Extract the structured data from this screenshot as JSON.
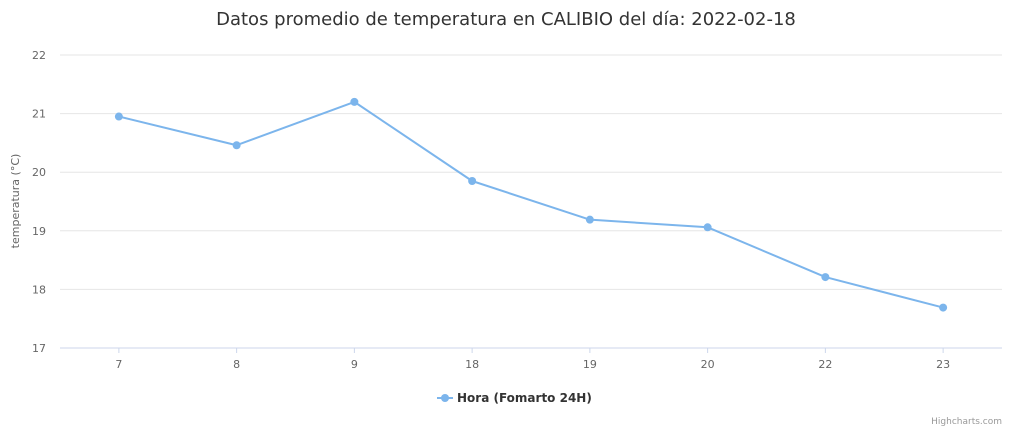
{
  "chart_data": {
    "type": "line",
    "title": "Datos promedio de temperatura en CALIBIO del día: 2022-02-18",
    "xlabel": "",
    "ylabel": "temperatura (°C)",
    "categories": [
      "7",
      "8",
      "9",
      "18",
      "19",
      "20",
      "22",
      "23"
    ],
    "series": [
      {
        "name": "Hora (Fomarto 24H)",
        "values": [
          20.95,
          20.46,
          21.2,
          19.85,
          19.19,
          19.06,
          18.21,
          17.69
        ],
        "color": "#7cb5ec"
      }
    ],
    "ylim": [
      17,
      22
    ],
    "yticks": [
      17,
      18,
      19,
      20,
      21,
      22
    ],
    "grid": true,
    "legend_position": "bottom-center"
  },
  "credits": "Highcharts.com"
}
